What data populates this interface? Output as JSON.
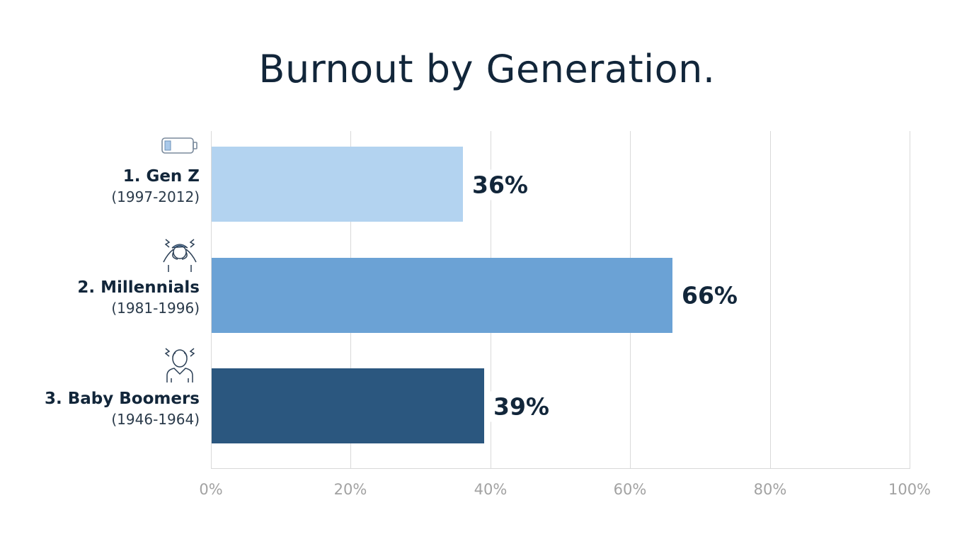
{
  "title": "Burnout by Generation.",
  "colors": {
    "gen_z": "#b3d3f0",
    "millennials": "#6ba2d5",
    "boomers": "#2b577f",
    "text": "#12263a",
    "grid": "#d9d9d9",
    "tick": "#a2a2a2"
  },
  "categories": [
    {
      "name": "1. Gen Z",
      "years": "(1997-2012)",
      "value_label": "36%",
      "icon": "low-battery-icon"
    },
    {
      "name": "2. Millennials",
      "years": "(1981-1996)",
      "value_label": "66%",
      "icon": "stressed-person-icon"
    },
    {
      "name": "3. Baby Boomers",
      "years": "(1946-1964)",
      "value_label": "39%",
      "icon": "stressed-older-person-icon"
    }
  ],
  "axis": {
    "ticks": [
      "0%",
      "20%",
      "40%",
      "60%",
      "80%",
      "100%"
    ]
  },
  "chart_data": {
    "type": "bar",
    "orientation": "horizontal",
    "title": "Burnout by Generation.",
    "categories": [
      "1. Gen Z (1997-2012)",
      "2. Millennials (1981-1996)",
      "3. Baby Boomers (1946-1964)"
    ],
    "values": [
      36,
      66,
      39
    ],
    "value_labels": [
      "36%",
      "66%",
      "39%"
    ],
    "xlabel": "",
    "ylabel": "",
    "xlim": [
      0,
      100
    ],
    "x_ticks": [
      "0%",
      "20%",
      "40%",
      "60%",
      "80%",
      "100%"
    ],
    "grid": true,
    "legend": null,
    "bar_colors": [
      "#b3d3f0",
      "#6ba2d5",
      "#2b577f"
    ]
  }
}
